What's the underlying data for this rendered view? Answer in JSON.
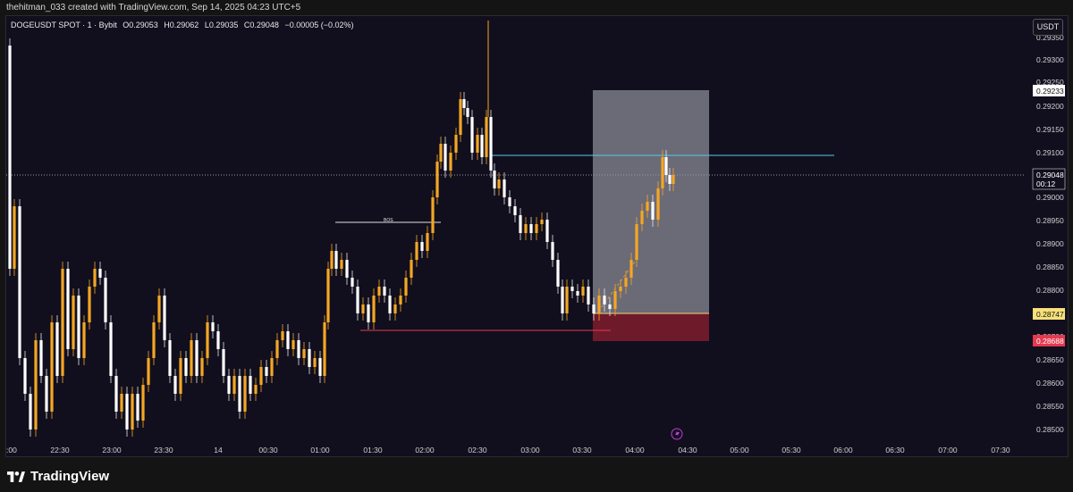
{
  "header": {
    "caption": "thehitman_033 created with TradingView.com, Sep 14, 2025 04:23 UTC+5"
  },
  "legend": {
    "symbol": "DOGEUSDT SPOT · 1 · Bybit",
    "open": "O0.29053",
    "high": "H0.29062",
    "low": "L0.29035",
    "close": "C0.29048",
    "change": "−0.00005 (−0.02%)"
  },
  "currency_button": "USDT",
  "price_axis": {
    "ticks": [
      "0.29350",
      "0.29300",
      "0.29250",
      "0.29200",
      "0.29150",
      "0.29100",
      "0.29000",
      "0.28950",
      "0.28900",
      "0.28850",
      "0.28800",
      "0.28700",
      "0.28650",
      "0.28600",
      "0.28550",
      "0.28500"
    ],
    "labels": {
      "target": "0.29233",
      "last": "0.29048",
      "countdown": "00:12",
      "entry": "0.28747",
      "stop": "0.28688"
    }
  },
  "time_axis": {
    "ticks": [
      ":00",
      "22:30",
      "23:00",
      "23:30",
      "14",
      "00:30",
      "01:00",
      "01:30",
      "02:00",
      "02:30",
      "03:00",
      "03:30",
      "04:00",
      "04:30",
      "05:00",
      "05:30",
      "06:00",
      "06:30",
      "07:00",
      "07:30"
    ]
  },
  "annotations": {
    "bos_label": "BOS"
  },
  "colors": {
    "background": "#110f1e",
    "candle_up": "#f5a623",
    "candle_down": "#ffffff",
    "target_zone": "#6b6a76",
    "stop_zone": "#7a1c2c",
    "cyan_line": "#26c6da",
    "red_line": "#e53950"
  },
  "branding": {
    "name": "TradingView"
  }
}
